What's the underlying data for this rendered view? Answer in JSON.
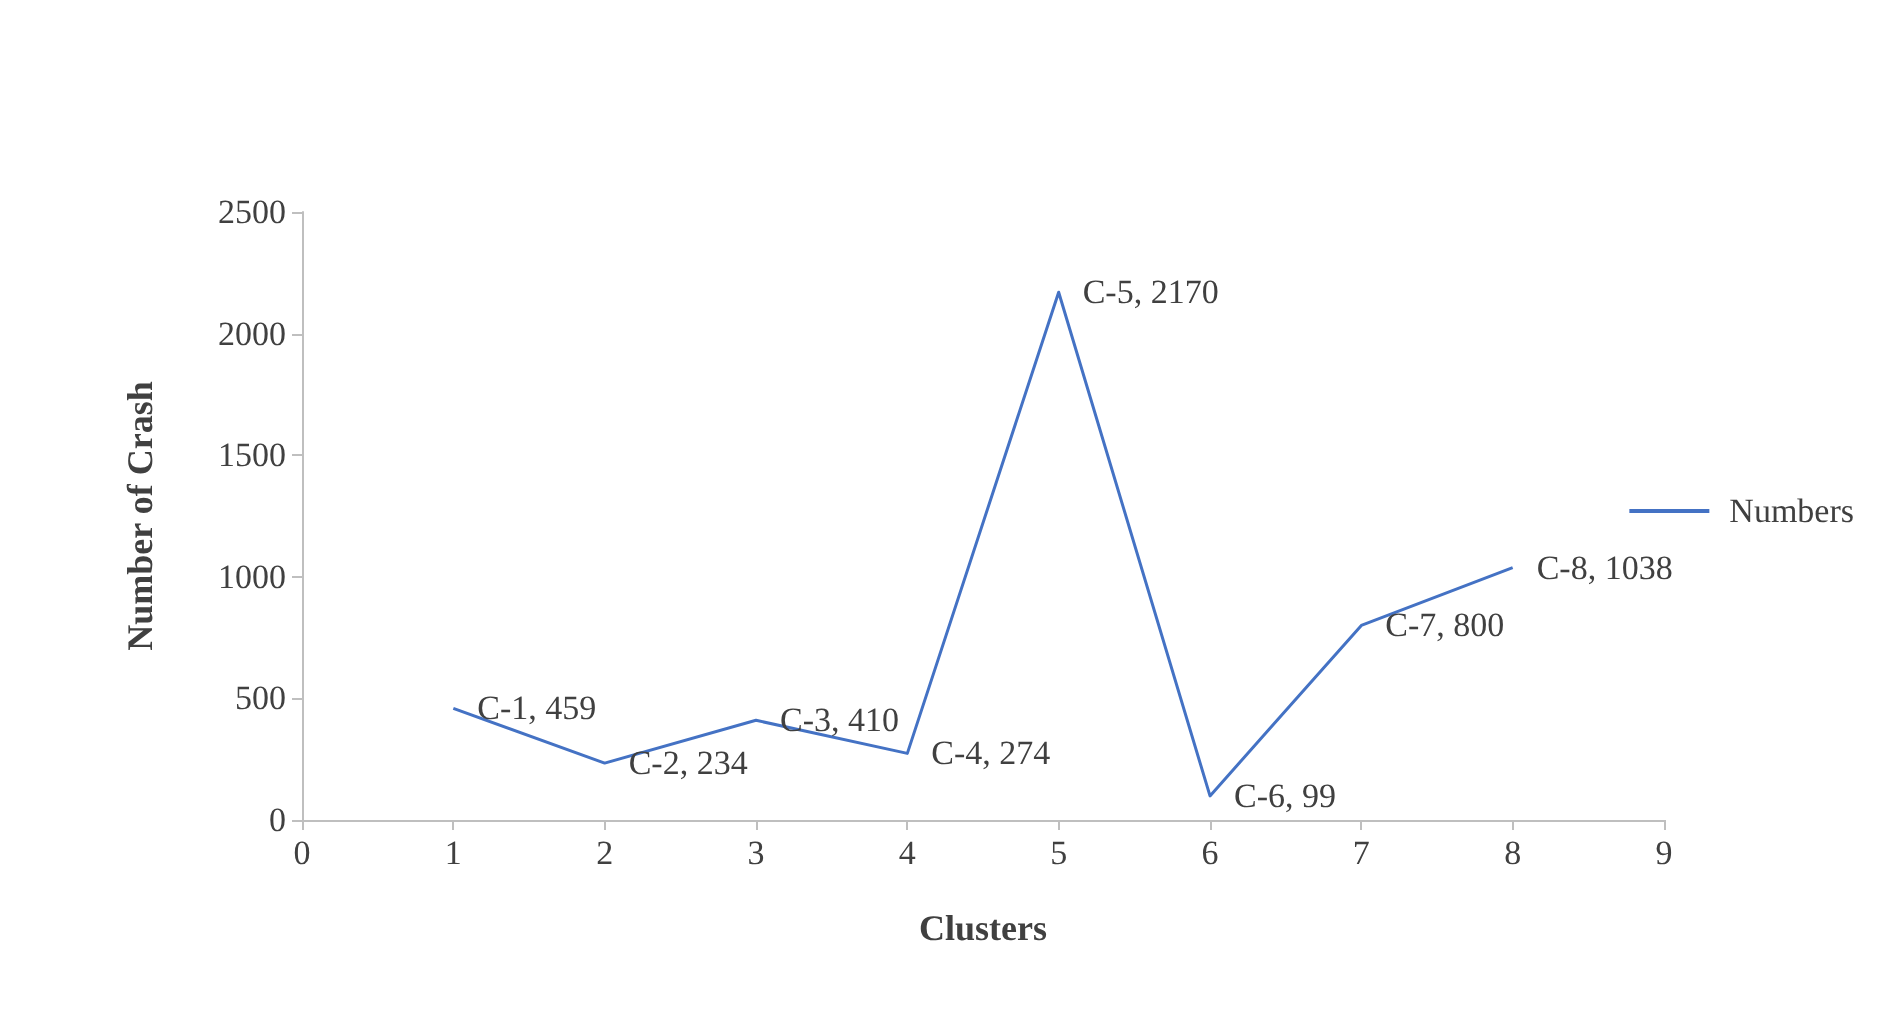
{
  "chart_data": {
    "type": "line",
    "xlabel": "Clusters",
    "ylabel": "Number of Crash",
    "x": [
      1,
      2,
      3,
      4,
      5,
      6,
      7,
      8
    ],
    "series": [
      {
        "name": "Numbers",
        "color": "#4472c4",
        "values": [
          459,
          234,
          410,
          274,
          2170,
          99,
          800,
          1038
        ],
        "value_labels": [
          "C-1, 459",
          "C-2, 234",
          "C-3, 410",
          "C-4, 274",
          "C-5, 2170",
          "C-6, 99",
          "C-7, 800",
          "C-8, 1038"
        ]
      }
    ],
    "xlim": [
      0,
      9
    ],
    "xticks": [
      0,
      1,
      2,
      3,
      4,
      5,
      6,
      7,
      8,
      9
    ],
    "ylim": [
      0,
      2500
    ],
    "yticks": [
      0,
      500,
      1000,
      1500,
      2000,
      2500
    ],
    "grid": false,
    "legend": "right",
    "marker": "none",
    "line_style": "solid"
  }
}
